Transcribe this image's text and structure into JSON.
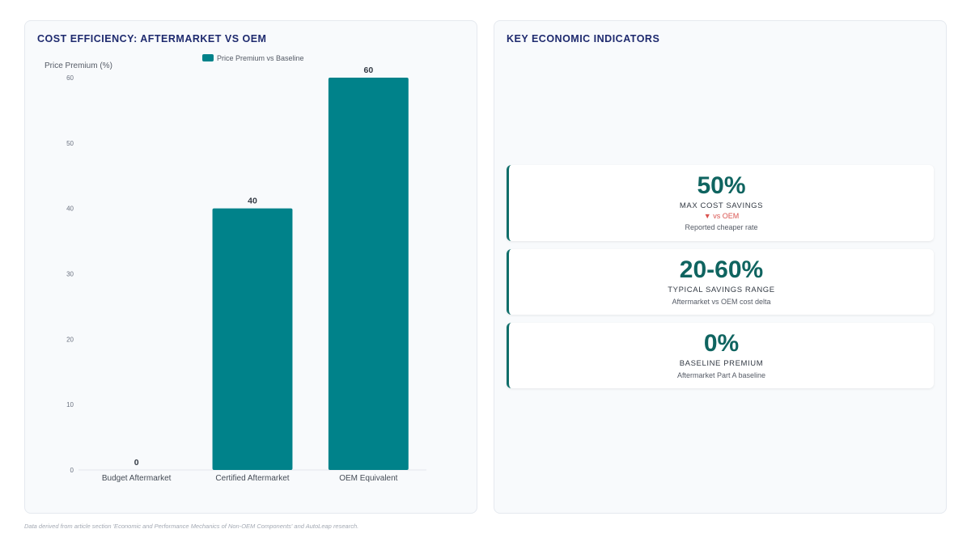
{
  "chart_panel": {
    "title": "COST EFFICIENCY: AFTERMARKET VS OEM"
  },
  "chart_data": {
    "type": "bar",
    "title": "COST EFFICIENCY: AFTERMARKET VS OEM",
    "ylabel": "Price Premium (%)",
    "xlabel": "",
    "categories": [
      "Budget Aftermarket",
      "Certified Aftermarket",
      "OEM Equivalent"
    ],
    "series": [
      {
        "name": "Price Premium vs Baseline",
        "values": [
          0,
          40,
          60
        ]
      }
    ],
    "ylim": [
      0,
      60
    ],
    "yticks": [
      "0",
      "10",
      "20",
      "30",
      "40",
      "50",
      "60"
    ],
    "data_labels": [
      "0",
      "40",
      "60"
    ],
    "bar_color": "#00828a",
    "legend_position": "top-center",
    "grid": false
  },
  "indicators_panel": {
    "title": "KEY ECONOMIC INDICATORS",
    "cards": [
      {
        "value": "50%",
        "label": "MAX COST SAVINGS",
        "trend": "▼ vs OEM",
        "description": "Reported cheaper rate"
      },
      {
        "value": "20-60%",
        "label": "TYPICAL SAVINGS RANGE",
        "description": "Aftermarket vs OEM cost delta"
      },
      {
        "value": "0%",
        "label": "BASELINE PREMIUM",
        "description": "Aftermarket Part A baseline"
      }
    ]
  },
  "footnote": "Data derived from article section 'Economic and Performance Mechanics of Non-OEM Components' and AutoLeap research."
}
